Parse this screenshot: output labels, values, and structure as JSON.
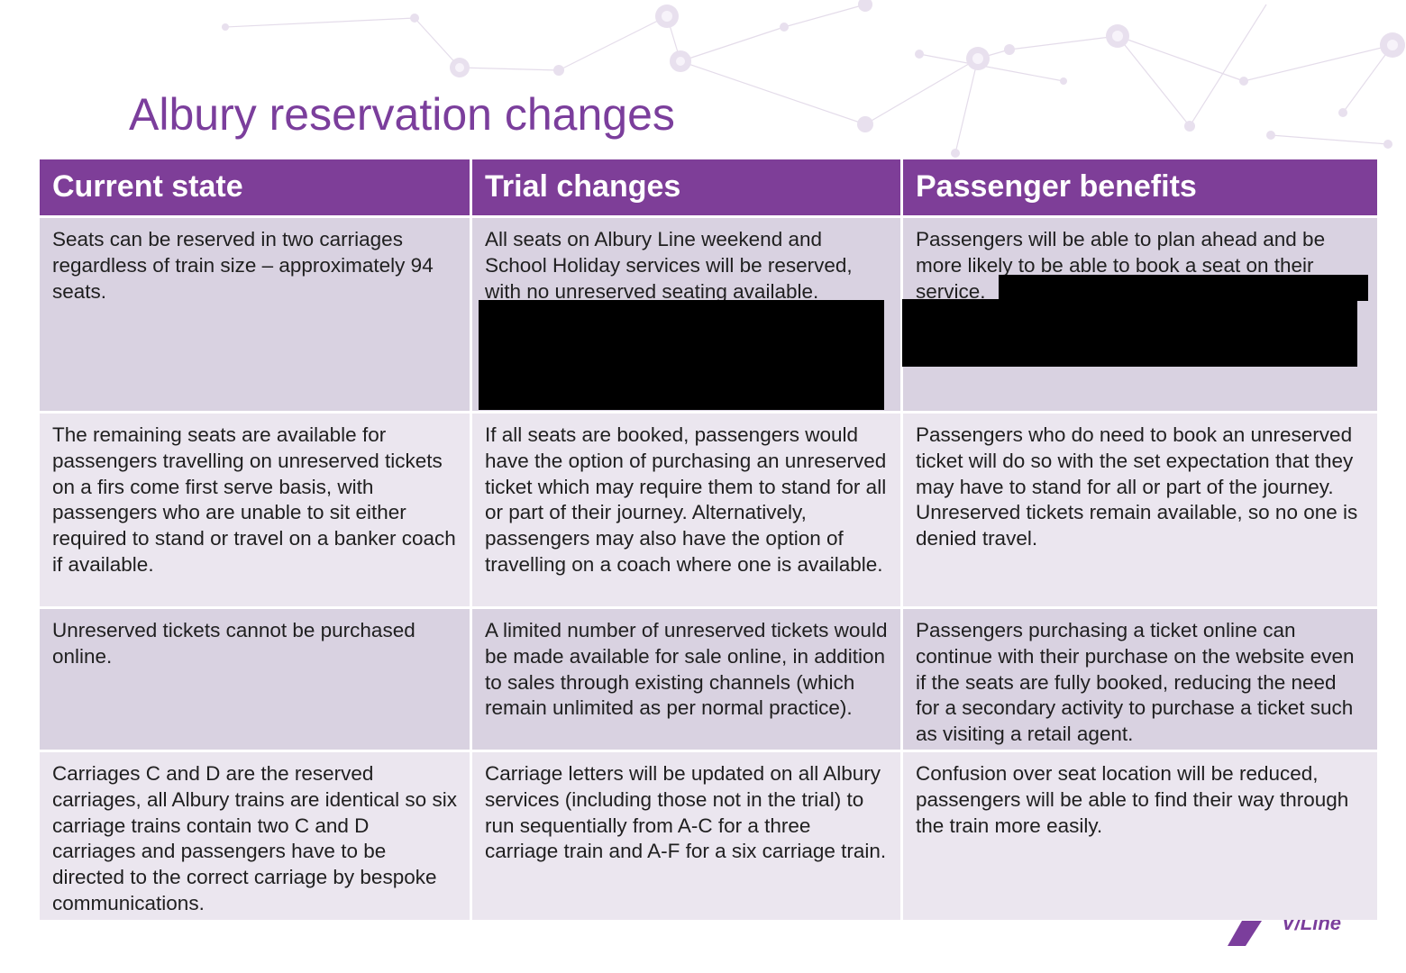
{
  "title": "Albury reservation changes",
  "colors": {
    "title": "#7b3e9c",
    "header_bg": "#7e3e98",
    "row_odd": "#d9d2e1",
    "row_even": "#ebe6ef",
    "redaction": "#000000"
  },
  "table": {
    "headers": [
      "Current state",
      "Trial changes",
      "Passenger benefits"
    ],
    "rows": [
      [
        "Seats can be reserved in two carriages regardless of train size – approximately 94 seats.",
        "All seats on Albury Line weekend and School Holiday services will be reserved, with no unreserved seating available.",
        "Passengers will be able to plan ahead and be more likely to be able to book a seat on their service."
      ],
      [
        "The remaining seats are available for passengers travelling on unreserved tickets on a firs come first serve basis, with passengers who are unable to sit either required to stand or travel on a banker coach if available.",
        "If all seats are booked, passengers would have the option of purchasing an unreserved ticket which may require them to stand for all or part of their journey. Alternatively, passengers may also have the option of travelling on a coach where one is available.",
        "Passengers who do need to book an unreserved ticket will do so with the set expectation that they may have to stand for all or part of the journey. Unreserved tickets remain available, so no one is denied travel."
      ],
      [
        "Unreserved tickets cannot be purchased online.",
        "A limited number of unreserved tickets would be made available for sale online, in addition to sales through existing channels (which remain unlimited as per normal practice).",
        "Passengers purchasing a ticket online can continue with their purchase on the website even if the seats are fully booked, reducing the need for a secondary activity to purchase a ticket such as visiting a retail agent."
      ],
      [
        "Carriages C and D are the reserved carriages, all Albury trains are identical so six carriage trains contain two C and D carriages and passengers have to be directed to the correct carriage by bespoke communications.",
        "Carriage letters will be updated on all Albury services (including those not in the trial) to run sequentially from A-C for a three carriage train and A-F for a six carriage train.",
        "Confusion over seat location will be reduced, passengers will be able to find their way through the train more easily."
      ]
    ]
  },
  "logo": {
    "text": "V/Line",
    "color": "#7b3e9c"
  }
}
